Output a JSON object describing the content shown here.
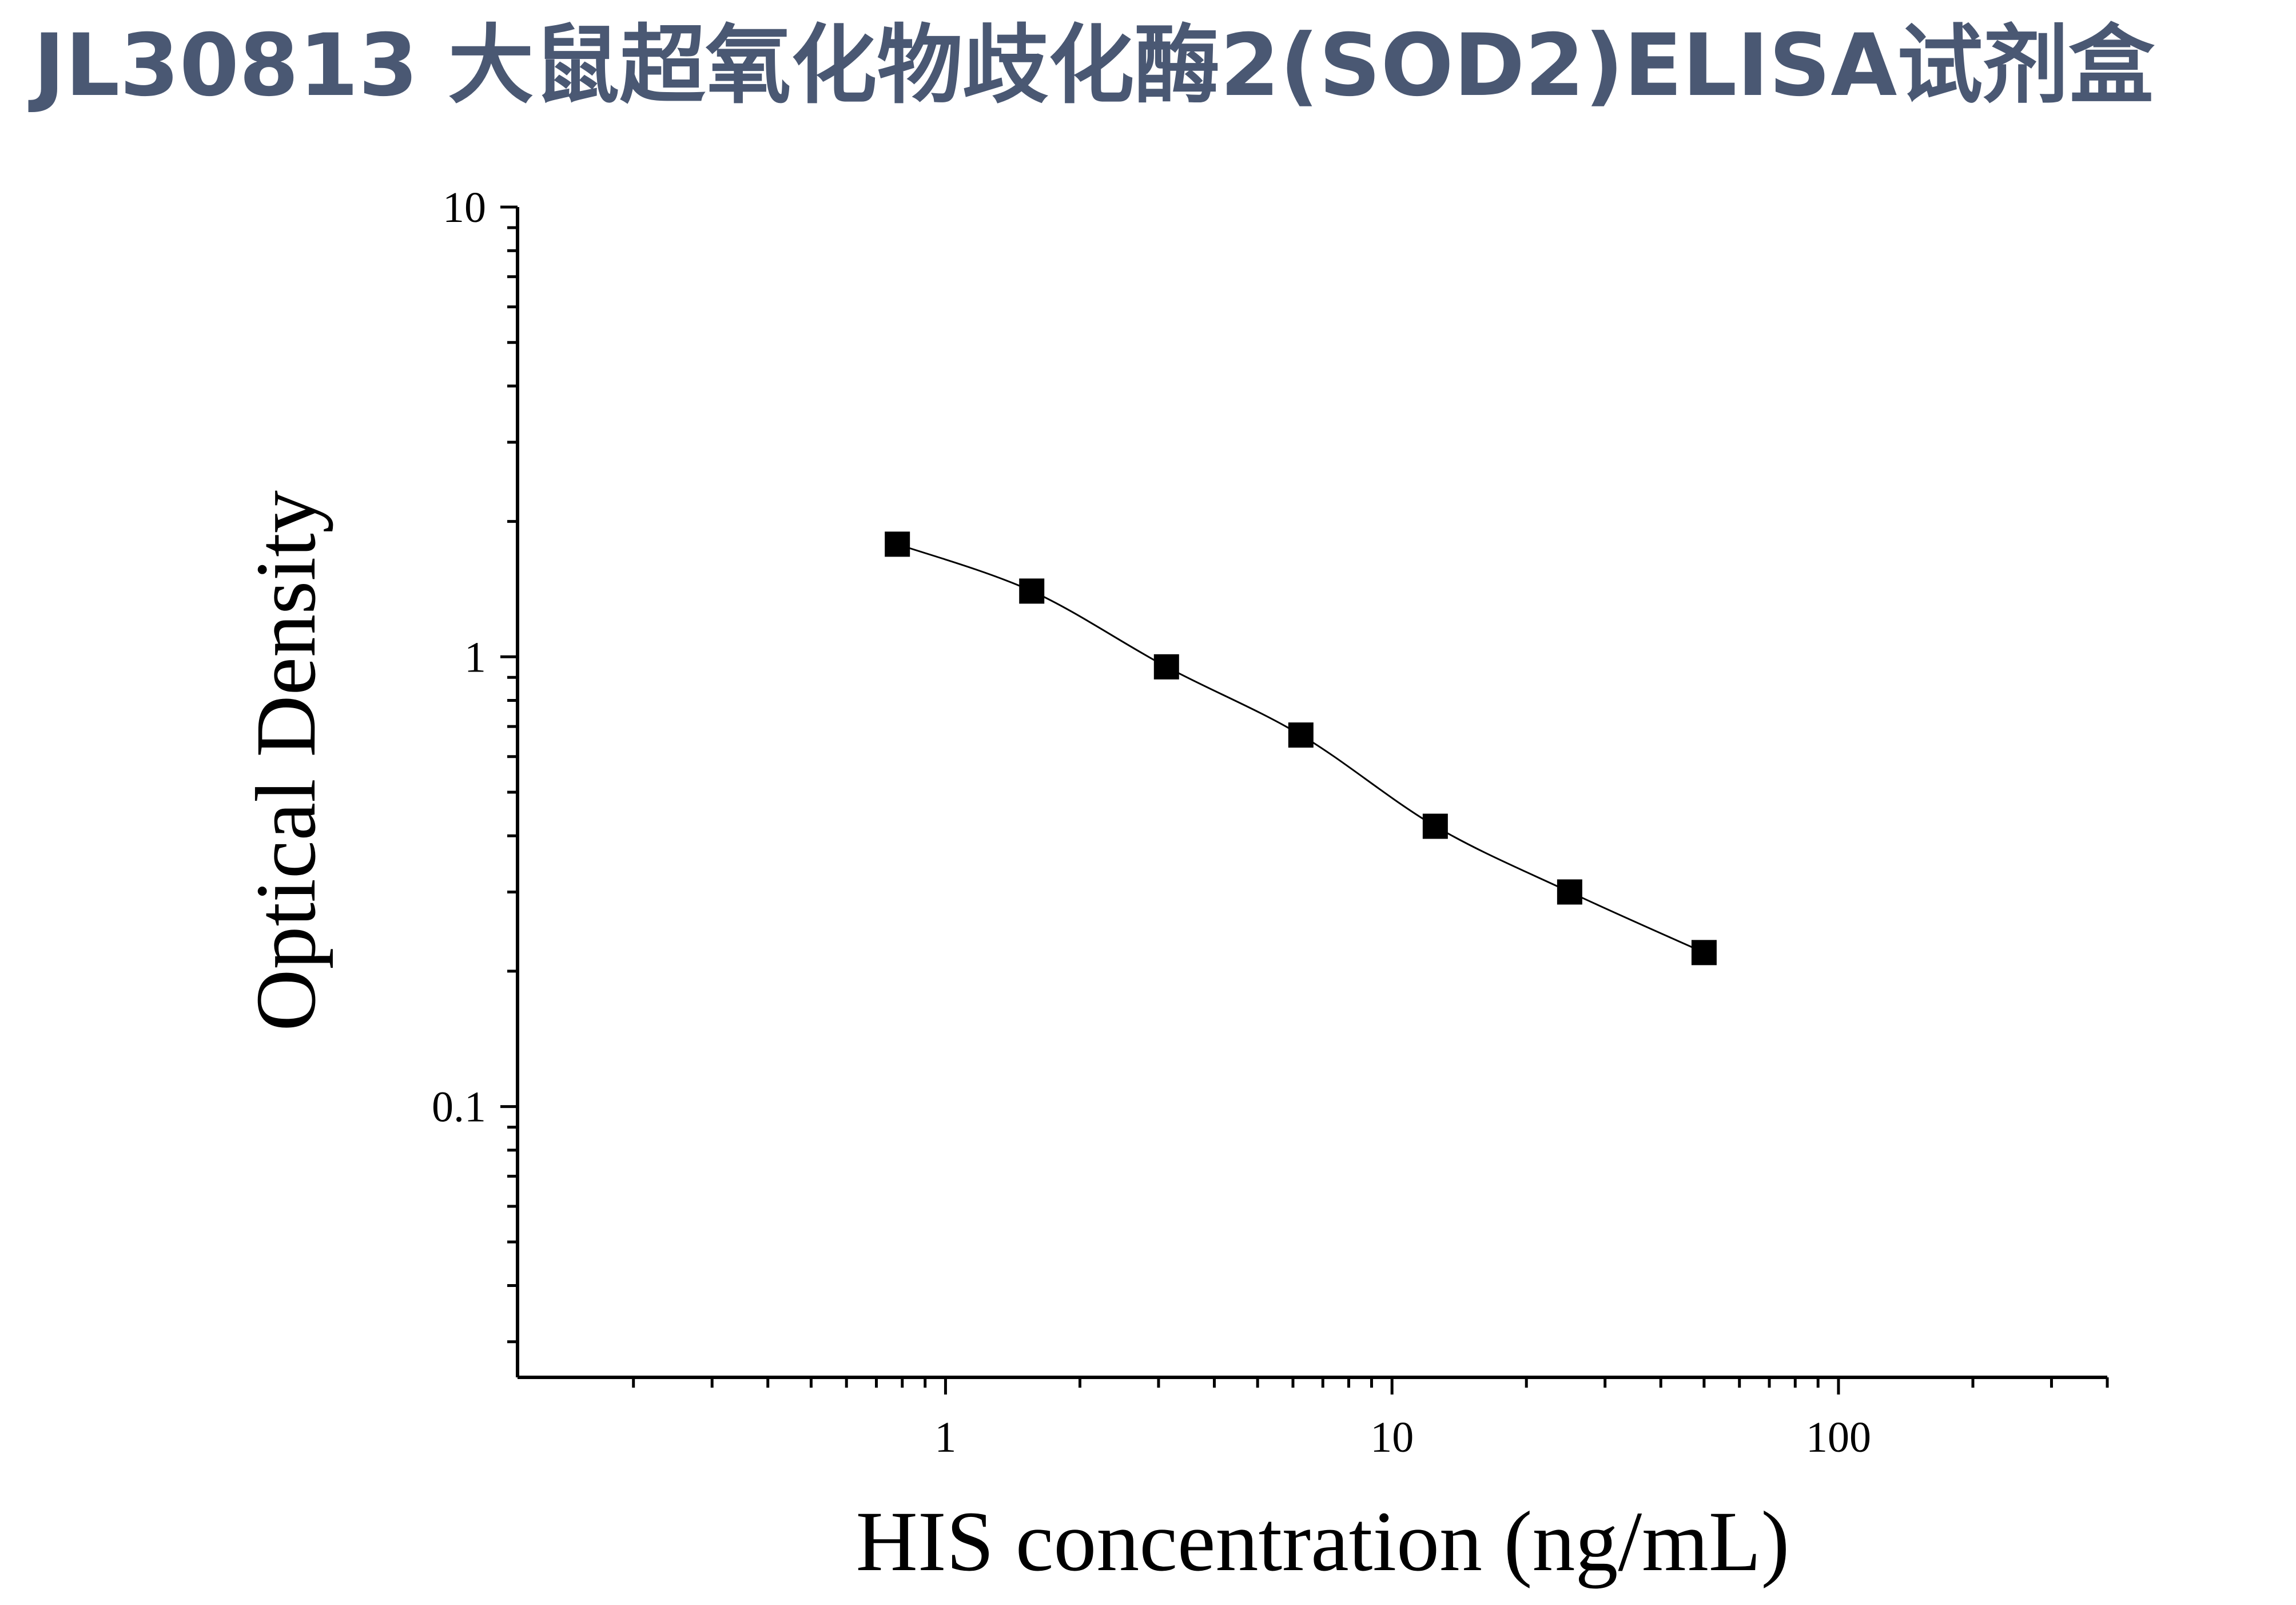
{
  "title": "JL30813 大鼠超氧化物歧化酶2(SOD2)ELISA试剂盒",
  "chart_data": {
    "type": "scatter",
    "title": "JL30813 大鼠超氧化物歧化酶2(SOD2)ELISA试剂盒",
    "xlabel": "HIS concentration (ng/mL)",
    "ylabel": "Optical Density",
    "x_scale": "log",
    "y_scale": "log",
    "xlim": [
      0.11,
      400
    ],
    "ylim": [
      0.025,
      10
    ],
    "x_ticks": [
      {
        "value": 1,
        "label": "1"
      },
      {
        "value": 10,
        "label": "10"
      },
      {
        "value": 100,
        "label": "100"
      }
    ],
    "y_ticks": [
      {
        "value": 0.1,
        "label": "0.1"
      },
      {
        "value": 1,
        "label": "1"
      },
      {
        "value": 10,
        "label": "10"
      }
    ],
    "series": [
      {
        "x": [
          0.78,
          1.56,
          3.125,
          6.25,
          12.5,
          25,
          50
        ],
        "y": [
          1.78,
          1.4,
          0.95,
          0.67,
          0.42,
          0.3,
          0.22
        ],
        "marker": "square",
        "line": "smooth fit",
        "color": "#000000"
      }
    ],
    "grid": false,
    "legend": "none"
  }
}
